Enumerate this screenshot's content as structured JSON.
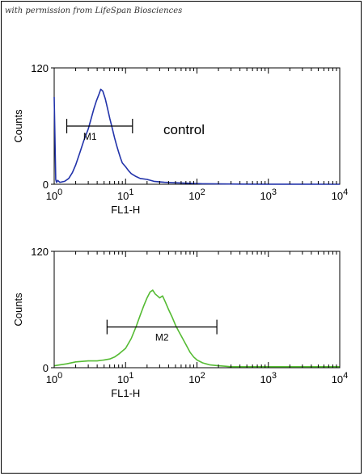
{
  "watermark": "with permission from LifeSpan Biosciences",
  "colors": {
    "control": "#2233aa",
    "sample": "#55bb33",
    "axis": "#000000"
  },
  "chart_data": [
    {
      "type": "line",
      "title": "",
      "xlabel": "FL1-H",
      "ylabel": "Counts",
      "xscale": "log",
      "xlim": [
        1,
        10000
      ],
      "ylim": [
        0,
        120
      ],
      "y_ticks": [
        0,
        120
      ],
      "x_tick_labels": [
        {
          "base": "10",
          "exp": "0"
        },
        {
          "base": "10",
          "exp": "1"
        },
        {
          "base": "10",
          "exp": "2"
        },
        {
          "base": "10",
          "exp": "3"
        },
        {
          "base": "10",
          "exp": "4"
        }
      ],
      "grid": false,
      "annotation": "control",
      "gate": {
        "label": "M1",
        "x_start": 1.5,
        "x_end": 12.5,
        "y": 60
      },
      "series": [
        {
          "color": "#2233aa",
          "x": [
            1.0,
            1.05,
            1.08,
            1.12,
            1.2,
            1.4,
            1.6,
            1.8,
            2.0,
            2.3,
            2.6,
            3.0,
            3.3,
            3.6,
            3.9,
            4.2,
            4.5,
            4.8,
            5.2,
            5.6,
            6.0,
            6.5,
            7.0,
            7.5,
            8.0,
            8.5,
            9.0,
            10,
            11,
            12,
            14,
            16,
            20,
            25,
            35,
            50,
            80,
            120,
            200,
            400,
            1000,
            3000,
            10000
          ],
          "y": [
            90,
            5,
            2,
            4,
            2,
            3,
            6,
            12,
            20,
            33,
            45,
            57,
            68,
            78,
            86,
            92,
            98,
            96,
            88,
            78,
            68,
            58,
            48,
            40,
            33,
            27,
            22,
            18,
            14,
            11,
            8,
            6,
            5,
            3,
            2,
            1.5,
            1,
            0.5,
            0.3,
            0.2,
            0.1,
            0.05,
            0
          ]
        }
      ]
    },
    {
      "type": "line",
      "title": "",
      "xlabel": "FL1-H",
      "ylabel": "Counts",
      "xscale": "log",
      "xlim": [
        1,
        10000
      ],
      "ylim": [
        0,
        120
      ],
      "y_ticks": [
        0,
        120
      ],
      "x_tick_labels": [
        {
          "base": "10",
          "exp": "0"
        },
        {
          "base": "10",
          "exp": "1"
        },
        {
          "base": "10",
          "exp": "2"
        },
        {
          "base": "10",
          "exp": "3"
        },
        {
          "base": "10",
          "exp": "4"
        }
      ],
      "grid": false,
      "gate": {
        "label": "M2",
        "x_start": 5.5,
        "x_end": 190,
        "y": 42
      },
      "series": [
        {
          "color": "#55bb33",
          "x": [
            1.0,
            1.5,
            2.0,
            3.0,
            4.0,
            5.0,
            6.0,
            7.0,
            8.0,
            10,
            12,
            14,
            16,
            18,
            20,
            22,
            24,
            26,
            28,
            30,
            33,
            36,
            40,
            45,
            50,
            55,
            60,
            70,
            80,
            90,
            100,
            120,
            150,
            200,
            250,
            300,
            400,
            600,
            1000,
            2000,
            5000,
            10000
          ],
          "y": [
            2,
            4,
            6,
            7,
            7,
            8,
            9,
            11,
            14,
            20,
            30,
            42,
            54,
            64,
            72,
            78,
            80,
            76,
            74,
            72,
            74,
            68,
            60,
            52,
            44,
            38,
            33,
            24,
            16,
            11,
            8,
            5,
            3,
            2,
            1.5,
            1,
            1,
            1,
            1,
            1,
            1,
            1
          ]
        }
      ]
    }
  ]
}
